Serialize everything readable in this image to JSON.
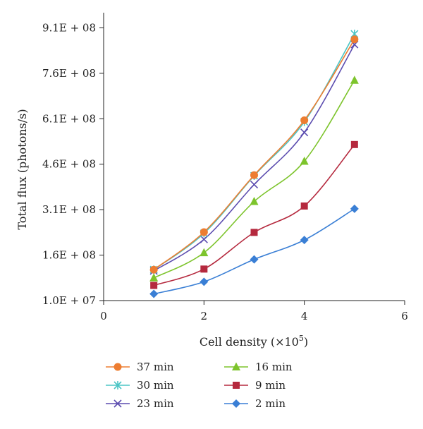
{
  "chart_data": {
    "type": "line",
    "title": "",
    "xlabel": "Cell density (×10",
    "xlabel_exponent": "5",
    "xlabel_suffix": ")",
    "ylabel": "Total flux (photons/s)",
    "xlim": [
      0,
      6
    ],
    "ylim": [
      10000000,
      960000000
    ],
    "x_ticks": [
      0,
      2,
      4,
      6
    ],
    "x_tick_labels": [
      "0",
      "2",
      "4",
      "6"
    ],
    "y_ticks": [
      10000000,
      160000000,
      310000000,
      460000000,
      610000000,
      760000000,
      910000000
    ],
    "y_tick_labels": [
      "1.0E + 07",
      "1.6E + 08",
      "3.1E + 08",
      "4.6E + 08",
      "6.1E + 08",
      "7.6E + 08",
      "9.1E + 08"
    ],
    "grid": false,
    "legend_position": "bottom",
    "x": [
      1,
      2,
      3,
      4,
      5
    ],
    "series": [
      {
        "name": "37 min",
        "values": [
          112000000,
          236000000,
          424000000,
          605000000,
          872000000
        ],
        "color": "#ED7D31",
        "marker": "circle"
      },
      {
        "name": "30 min",
        "values": [
          112000000,
          232000000,
          422000000,
          600000000,
          890000000
        ],
        "color": "#4BC5C5",
        "marker": "asterisk"
      },
      {
        "name": "23 min",
        "values": [
          108000000,
          212000000,
          393000000,
          565000000,
          855000000
        ],
        "color": "#5B4CAF",
        "marker": "x"
      },
      {
        "name": "16 min",
        "values": [
          85000000,
          168000000,
          337000000,
          470000000,
          737000000
        ],
        "color": "#7DC42C",
        "marker": "triangle"
      },
      {
        "name": "9 min",
        "values": [
          60000000,
          114000000,
          235000000,
          322000000,
          525000000
        ],
        "color": "#B5293E",
        "marker": "square"
      },
      {
        "name": "2 min",
        "values": [
          32000000,
          72000000,
          146000000,
          210000000,
          313000000
        ],
        "color": "#3A7FD5",
        "marker": "diamond"
      }
    ]
  }
}
